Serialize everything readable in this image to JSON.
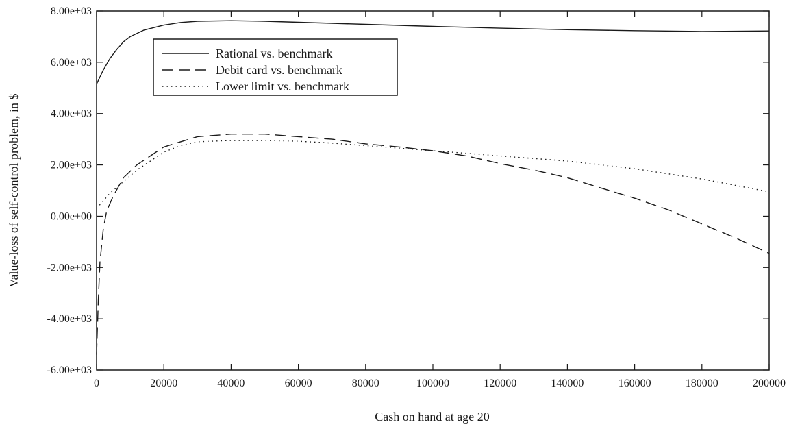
{
  "chart_data": {
    "type": "line",
    "title": "",
    "xlabel": "Cash on hand at age 20",
    "ylabel": "Value-loss of self-control problem, in $",
    "xlim": [
      0,
      200000
    ],
    "ylim": [
      -6000,
      8000
    ],
    "x_ticks": [
      0,
      20000,
      40000,
      60000,
      80000,
      100000,
      120000,
      140000,
      160000,
      180000,
      200000
    ],
    "x_tick_labels": [
      "0",
      "20000",
      "40000",
      "60000",
      "80000",
      "100000",
      "120000",
      "140000",
      "160000",
      "180000",
      "200000"
    ],
    "y_ticks": [
      -6000,
      -4000,
      -2000,
      0,
      2000,
      4000,
      6000,
      8000
    ],
    "y_tick_labels": [
      "-6.00e+03",
      "-4.00e+03",
      "-2.00e+03",
      "0.00e+00",
      "2.00e+03",
      "4.00e+03",
      "6.00e+03",
      "8.00e+03"
    ],
    "grid": false,
    "legend_position": "top-left",
    "series": [
      {
        "name": "Rational vs. benchmark",
        "style": "solid",
        "color": "#1a1a1a",
        "x": [
          0,
          2000,
          4000,
          6000,
          8000,
          10000,
          14000,
          20000,
          25000,
          30000,
          40000,
          50000,
          60000,
          80000,
          100000,
          120000,
          140000,
          160000,
          180000,
          200000
        ],
        "y": [
          5150,
          5700,
          6150,
          6500,
          6800,
          7000,
          7250,
          7450,
          7550,
          7600,
          7620,
          7600,
          7560,
          7480,
          7400,
          7330,
          7270,
          7230,
          7200,
          7220
        ]
      },
      {
        "name": "Debit card vs. benchmark",
        "style": "dashed",
        "color": "#1a1a1a",
        "x": [
          0,
          500,
          1000,
          2000,
          3000,
          5000,
          8000,
          12000,
          20000,
          30000,
          40000,
          50000,
          60000,
          70000,
          80000,
          90000,
          100000,
          110000,
          120000,
          130000,
          140000,
          150000,
          160000,
          170000,
          180000,
          190000,
          200000
        ],
        "y": [
          -5400,
          -3300,
          -1800,
          -500,
          200,
          800,
          1500,
          2000,
          2700,
          3100,
          3200,
          3200,
          3100,
          3000,
          2820,
          2700,
          2550,
          2350,
          2050,
          1800,
          1500,
          1100,
          700,
          250,
          -300,
          -850,
          -1450
        ]
      },
      {
        "name": "Lower limit vs. benchmark",
        "style": "dotted",
        "color": "#1a1a1a",
        "x": [
          0,
          1000,
          2000,
          4000,
          8000,
          12000,
          16000,
          20000,
          25000,
          30000,
          40000,
          50000,
          60000,
          70000,
          80000,
          90000,
          100000,
          110000,
          120000,
          130000,
          140000,
          150000,
          160000,
          170000,
          180000,
          190000,
          200000
        ],
        "y": [
          300,
          450,
          600,
          900,
          1350,
          1800,
          2150,
          2500,
          2750,
          2900,
          2950,
          2950,
          2920,
          2850,
          2750,
          2650,
          2550,
          2450,
          2350,
          2250,
          2150,
          2000,
          1850,
          1650,
          1450,
          1200,
          950
        ]
      }
    ]
  }
}
